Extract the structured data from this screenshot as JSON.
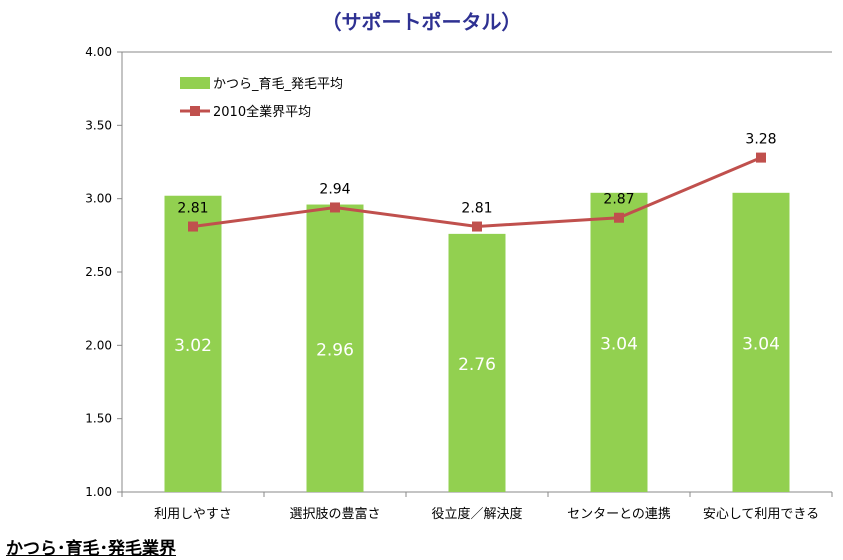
{
  "title": "（サポートポータル）",
  "footer": "かつら･育毛･発毛業界",
  "chart_data": {
    "type": "bar",
    "categories": [
      "利用しやすさ",
      "選択肢の豊富さ",
      "役立度／解決度",
      "センターとの連携",
      "安心して利用できる"
    ],
    "series": [
      {
        "name": "かつら_育毛_発毛平均",
        "kind": "bar",
        "color": "#92d050",
        "values": [
          3.02,
          2.96,
          2.76,
          3.04,
          3.04
        ]
      },
      {
        "name": "2010全業界平均",
        "kind": "line",
        "color": "#c0504d",
        "values": [
          2.81,
          2.94,
          2.81,
          2.87,
          3.28
        ]
      }
    ],
    "ylim": [
      1.0,
      4.0
    ],
    "yticks": [
      "1.00",
      "1.50",
      "2.00",
      "2.50",
      "3.00",
      "3.50",
      "4.00"
    ],
    "legend": "top-left",
    "grid": false
  }
}
